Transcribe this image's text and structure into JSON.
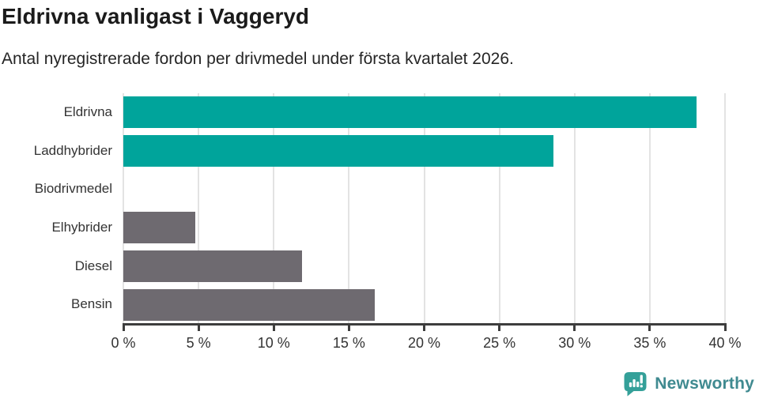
{
  "chart_data": {
    "type": "bar",
    "orientation": "horizontal",
    "title": "Eldrivna vanligast i Vaggeryd",
    "subtitle": "Antal nyregistrerade fordon per drivmedel under första kvartalet 2026.",
    "categories": [
      "Eldrivna",
      "Laddhybrider",
      "Biodrivmedel",
      "Elhybrider",
      "Diesel",
      "Bensin"
    ],
    "values": [
      38.1,
      28.6,
      0,
      4.8,
      11.9,
      16.7
    ],
    "unit": "%",
    "xlabel": "",
    "ylabel": "",
    "xlim": [
      0,
      40
    ],
    "x_ticks": [
      0,
      5,
      10,
      15,
      20,
      25,
      30,
      35,
      40
    ],
    "x_tick_labels": [
      "0 %",
      "5 %",
      "10 %",
      "15 %",
      "20 %",
      "25 %",
      "30 %",
      "35 %",
      "40 %"
    ],
    "bar_colors": [
      "#00a49b",
      "#00a49b",
      "#6e6a70",
      "#6e6a70",
      "#6e6a70",
      "#6e6a70"
    ],
    "grid": "vertical",
    "legend": "none"
  },
  "colors": {
    "accent_teal": "#00a49b",
    "bar_gray": "#6e6a70",
    "gridline": "#e3e3e3",
    "axis": "#3d3d3d",
    "label_text": "#333333",
    "logo_bubble": "#34a099",
    "logo_text": "#3f8a90"
  },
  "footer": {
    "brand": "Newsworthy"
  }
}
